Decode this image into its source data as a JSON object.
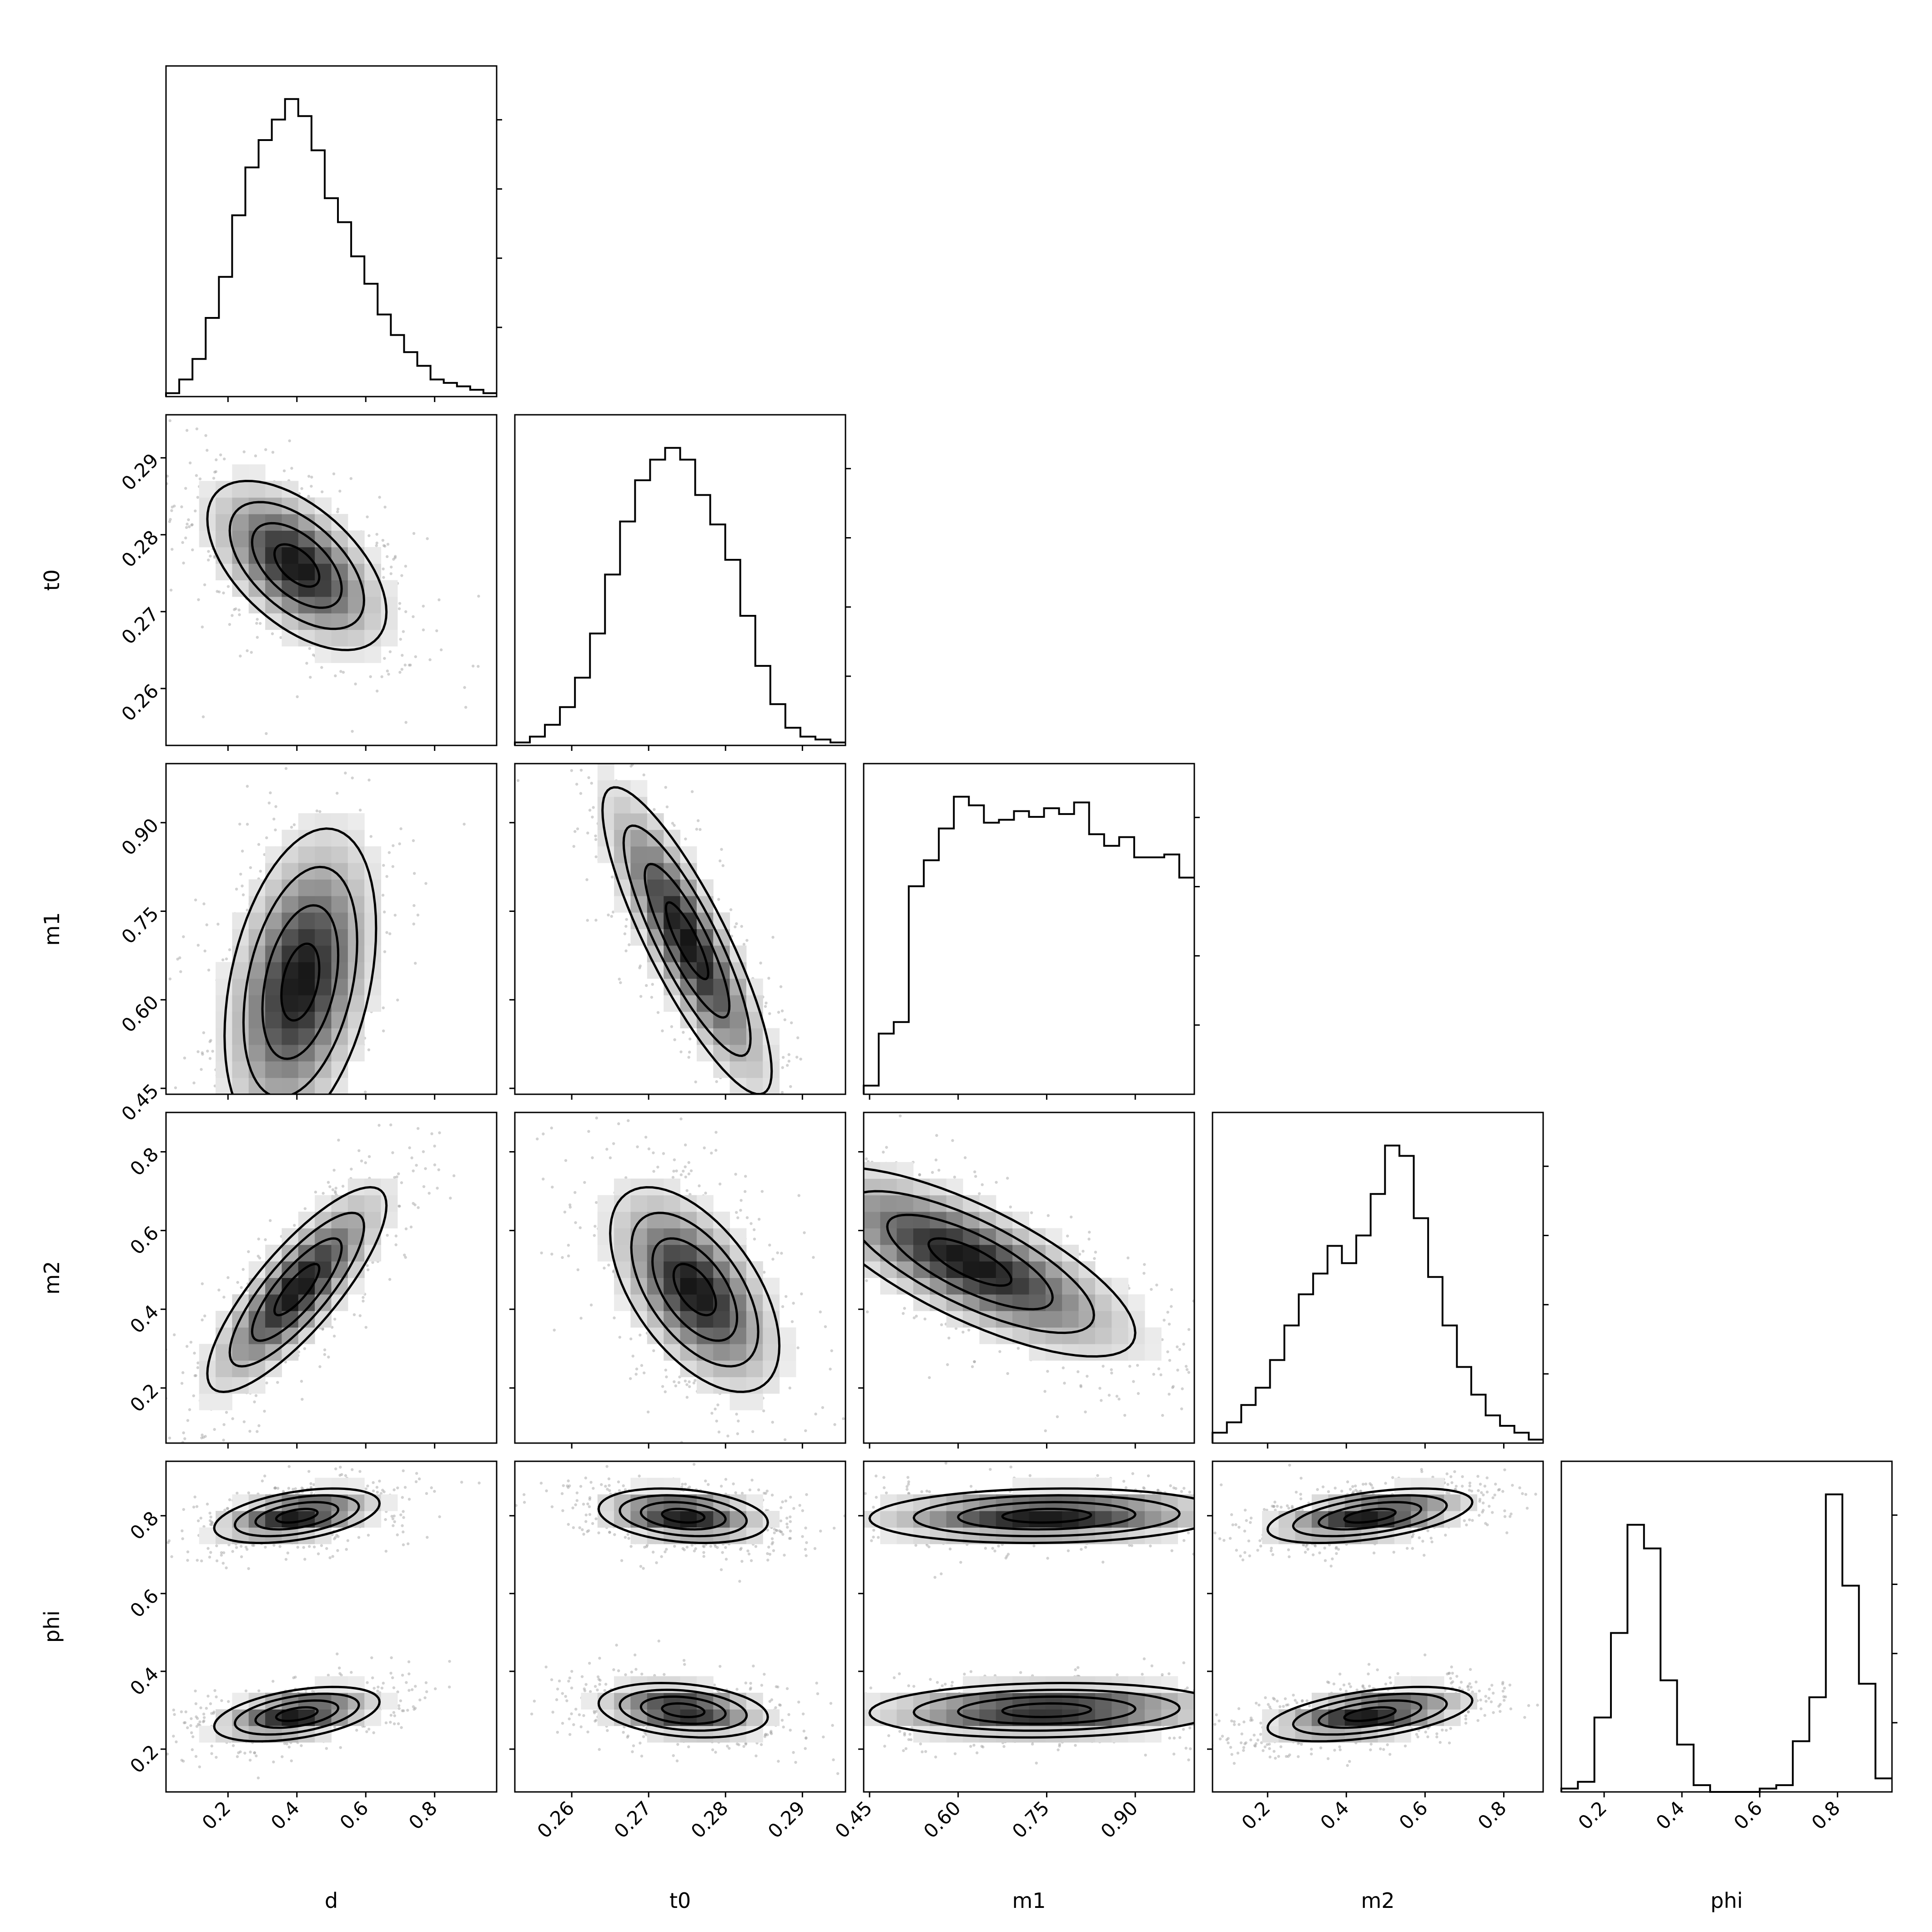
{
  "chart_data": {
    "type": "corner",
    "parameters": [
      "d",
      "t0",
      "m1",
      "m2",
      "phi"
    ],
    "axis_labels": [
      "d",
      "t0",
      "m1",
      "m2",
      "phi"
    ],
    "ranges": [
      [
        0.02,
        0.98
      ],
      [
        0.2526,
        0.2956
      ],
      [
        0.44,
        1.0
      ],
      [
        0.06,
        0.9
      ],
      [
        0.09,
        0.94
      ]
    ],
    "ticks": [
      [
        "0.2",
        "0.4",
        "0.6",
        "0.8"
      ],
      [
        "0.26",
        "0.27",
        "0.28",
        "0.29"
      ],
      [
        "0.45",
        "0.60",
        "0.75",
        "0.90"
      ],
      [
        "0.2",
        "0.4",
        "0.6",
        "0.8"
      ],
      [
        "0.2",
        "0.4",
        "0.6",
        "0.8"
      ]
    ],
    "histograms": [
      {
        "parameter": "d",
        "values": [
          1,
          5,
          11,
          23,
          35,
          53,
          67,
          75,
          81,
          87,
          82,
          72,
          58,
          51,
          41,
          33,
          24,
          18,
          13,
          9,
          5,
          4,
          3,
          2,
          1
        ]
      },
      {
        "parameter": "t0",
        "values": [
          1,
          3,
          7,
          13,
          23,
          38,
          58,
          76,
          90,
          97,
          101,
          97,
          85,
          75,
          63,
          44,
          27,
          14,
          6,
          3,
          2,
          1
        ]
      },
      {
        "parameter": "m1",
        "values": [
          3,
          21,
          25,
          72,
          81,
          92,
          103,
          100,
          94,
          95,
          98,
          96,
          99,
          97,
          101,
          90,
          86,
          89,
          82,
          82,
          83,
          75
        ]
      },
      {
        "parameter": "m2",
        "values": [
          3,
          6,
          11,
          16,
          24,
          34,
          43,
          49,
          57,
          52,
          60,
          72,
          86,
          83,
          65,
          48,
          34,
          22,
          14,
          8,
          5,
          3,
          1
        ]
      },
      {
        "parameter": "phi",
        "values": [
          1,
          3,
          22,
          47,
          79,
          72,
          33,
          14,
          2,
          0,
          0,
          0,
          1,
          2,
          15,
          28,
          88,
          61,
          32,
          4
        ]
      }
    ],
    "pairs": [
      {
        "x": "d",
        "y": "t0",
        "mode": {
          "x": 0.4,
          "y": 0.276
        },
        "sigma": {
          "x": 0.13,
          "y": 0.0055
        },
        "corr": -0.55
      },
      {
        "x": "d",
        "y": "m1",
        "mode": {
          "x": 0.41,
          "y": 0.63
        },
        "sigma": {
          "x": 0.11,
          "y": 0.13
        },
        "corr": 0.35
      },
      {
        "x": "t0",
        "y": "m1",
        "mode": {
          "x": 0.275,
          "y": 0.7
        },
        "sigma": {
          "x": 0.0055,
          "y": 0.13
        },
        "corr": -0.85
      },
      {
        "x": "d",
        "y": "m2",
        "mode": {
          "x": 0.4,
          "y": 0.45
        },
        "sigma": {
          "x": 0.13,
          "y": 0.13
        },
        "corr": 0.82
      },
      {
        "x": "t0",
        "y": "m2",
        "mode": {
          "x": 0.276,
          "y": 0.45
        },
        "sigma": {
          "x": 0.0055,
          "y": 0.13
        },
        "corr": -0.55
      },
      {
        "x": "m1",
        "y": "m2",
        "mode": {
          "x": 0.62,
          "y": 0.52
        },
        "sigma": {
          "x": 0.14,
          "y": 0.12
        },
        "corr": -0.75
      },
      {
        "x": "d",
        "y": "phi",
        "modes": [
          {
            "x": 0.4,
            "y": 0.8
          },
          {
            "x": 0.4,
            "y": 0.29
          }
        ],
        "sigma": {
          "x": 0.12,
          "y": 0.035
        },
        "corr": 0.45
      },
      {
        "x": "t0",
        "y": "phi",
        "modes": [
          {
            "x": 0.2745,
            "y": 0.8
          },
          {
            "x": 0.2745,
            "y": 0.3
          }
        ],
        "sigma": {
          "x": 0.0055,
          "y": 0.035
        },
        "corr": -0.25
      },
      {
        "x": "m1",
        "y": "phi",
        "modes": [
          {
            "x": 0.75,
            "y": 0.8
          },
          {
            "x": 0.75,
            "y": 0.3
          }
        ],
        "sigma": {
          "x": 0.15,
          "y": 0.035
        },
        "corr": 0.1
      },
      {
        "x": "m2",
        "y": "phi",
        "modes": [
          {
            "x": 0.46,
            "y": 0.8
          },
          {
            "x": 0.46,
            "y": 0.29
          }
        ],
        "sigma": {
          "x": 0.13,
          "y": 0.035
        },
        "corr": 0.5
      }
    ],
    "grid": false,
    "legend": "none"
  }
}
